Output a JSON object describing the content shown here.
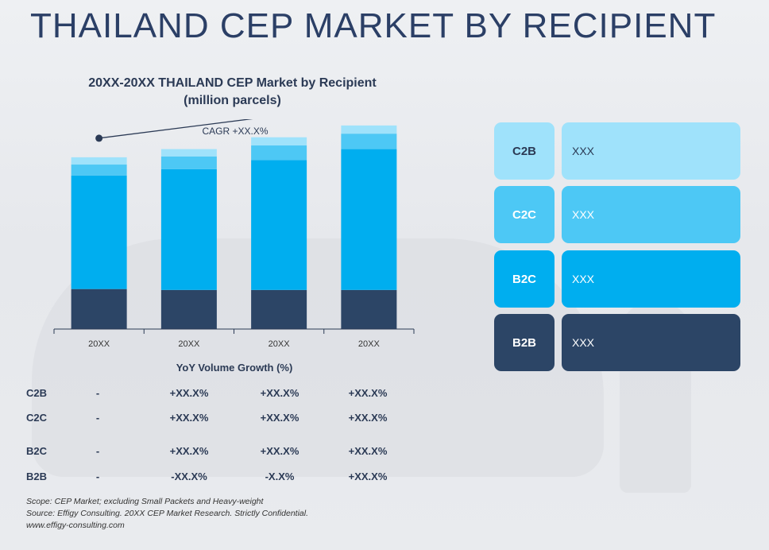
{
  "title": "THAILAND CEP MARKET BY RECIPIENT",
  "chart_title_line1": "20XX-20XX THAILAND CEP Market by Recipient",
  "chart_title_line2": "(million parcels)",
  "colors": {
    "b2b": "#2c4566",
    "b2c": "#00aeef",
    "c2c": "#4dc8f5",
    "c2b": "#9fe2fb",
    "title": "#2b3f66"
  },
  "chart_data": {
    "type": "bar",
    "stacked": true,
    "title": "20XX-20XX THAILAND CEP Market by Recipient (million parcels)",
    "categories": [
      "20XX",
      "20XX",
      "20XX",
      "20XX"
    ],
    "series": [
      {
        "name": "B2B",
        "values": [
          44,
          43,
          43,
          43
        ]
      },
      {
        "name": "B2C",
        "values": [
          125,
          133,
          143,
          155
        ]
      },
      {
        "name": "C2C",
        "values": [
          12,
          14,
          16,
          17
        ]
      },
      {
        "name": "C2B",
        "values": [
          8,
          8,
          9,
          9
        ]
      }
    ],
    "ylim": [
      0,
      230
    ],
    "annotation": "CAGR +XX.X%",
    "grid": false,
    "legend": "right"
  },
  "yoy": {
    "title": "YoY Volume Growth (%)",
    "rows": [
      {
        "label": "C2B",
        "values": [
          "-",
          "+XX.X%",
          "+XX.X%",
          "+XX.X%"
        ]
      },
      {
        "label": "C2C",
        "values": [
          "-",
          "+XX.X%",
          "+XX.X%",
          "+XX.X%"
        ]
      },
      {
        "label": "B2C",
        "values": [
          "-",
          "+XX.X%",
          "+XX.X%",
          "+XX.X%"
        ]
      },
      {
        "label": "B2B",
        "values": [
          "-",
          "-XX.X%",
          "-X.X%",
          "+XX.X%"
        ]
      }
    ]
  },
  "legend": [
    {
      "key": "C2B",
      "value": "XXX"
    },
    {
      "key": "C2C",
      "value": "XXX"
    },
    {
      "key": "B2C",
      "value": "XXX"
    },
    {
      "key": "B2B",
      "value": "XXX"
    }
  ],
  "footer": {
    "scope": "Scope: CEP Market; excluding Small Packets and Heavy-weight",
    "source": "Source: Effigy Consulting. 20XX CEP Market Research. Strictly Confidential.",
    "url": "www.effigy-consulting.com"
  }
}
